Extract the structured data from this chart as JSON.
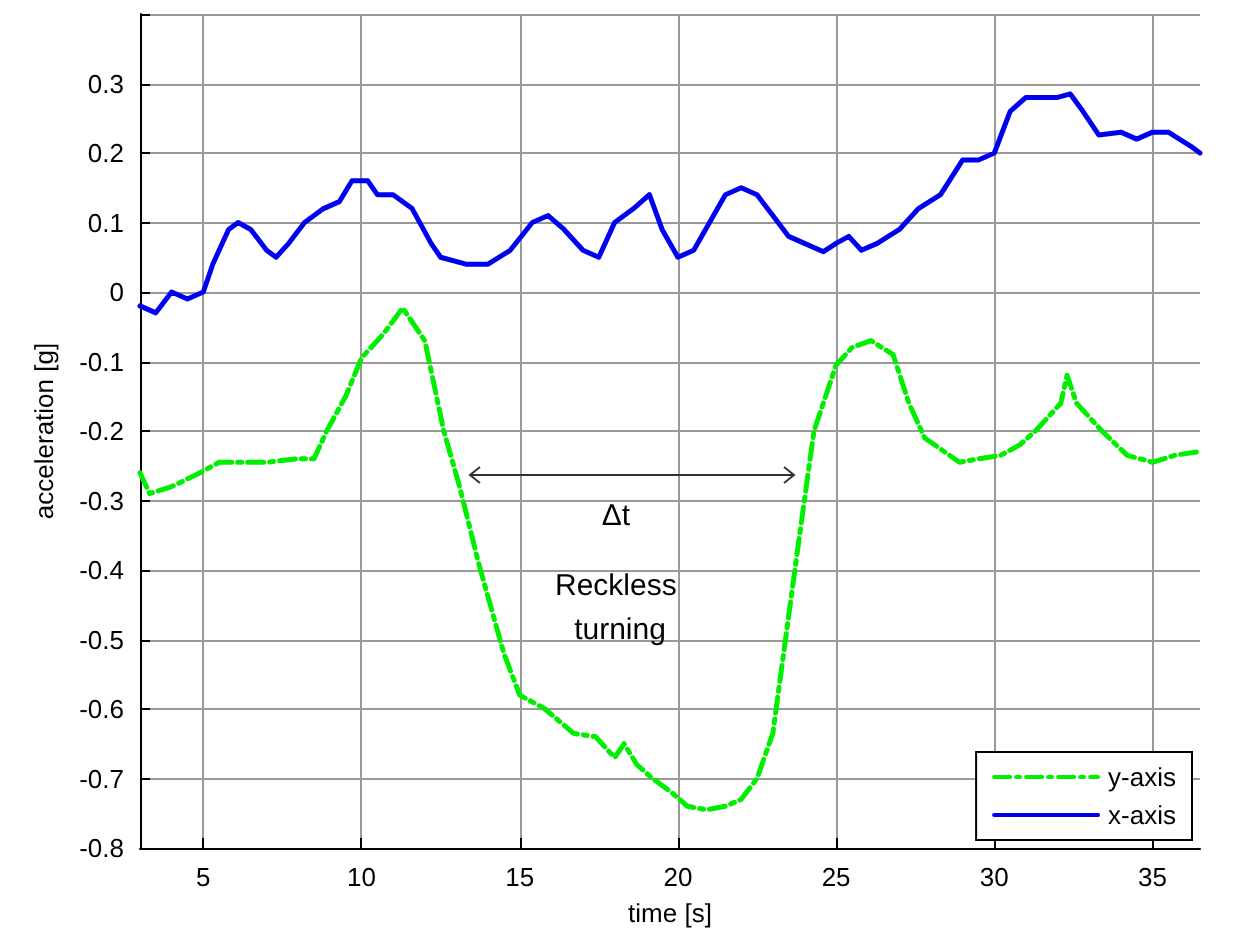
{
  "chart_data": {
    "type": "line",
    "xlabel": "time [s]",
    "ylabel": "acceleration [g]",
    "xlim": [
      3,
      36.5
    ],
    "xticks": [
      5,
      10,
      15,
      20,
      25,
      30,
      35
    ],
    "ylim": [
      -0.8,
      0.4
    ],
    "yticks": [
      -0.8,
      -0.7,
      -0.6,
      -0.5,
      -0.4,
      -0.3,
      -0.2,
      -0.1,
      0,
      0.1,
      0.2,
      0.3,
      {
        "value": 0.4,
        "label": null
      }
    ],
    "grid": true,
    "legend": "bottom right",
    "marker": "none",
    "annotations": [
      "Δt",
      "Reckless turning"
    ],
    "series": [
      {
        "name": "y-axis",
        "color": "#00ee00",
        "line_style": "dashed",
        "x": [
          3.0,
          3.3,
          4.0,
          4.9,
          5.5,
          7.0,
          8.0,
          8.5,
          8.9,
          9.5,
          10.0,
          10.7,
          11.3,
          12.0,
          12.6,
          13.1,
          13.7,
          14.5,
          15.0,
          15.8,
          16.7,
          17.4,
          18.0,
          18.3,
          18.7,
          19.2,
          19.8,
          20.3,
          20.9,
          21.5,
          22.0,
          22.5,
          23.0,
          23.4,
          23.8,
          24.3,
          25.0,
          25.5,
          26.1,
          26.8,
          27.3,
          27.8,
          28.9,
          29.5,
          30.2,
          30.8,
          31.3,
          32.1,
          32.3,
          32.6,
          33.0,
          33.4,
          34.2,
          35.0,
          35.7,
          36.4
        ],
        "values": [
          -0.26,
          -0.29,
          -0.28,
          -0.26,
          -0.245,
          -0.245,
          -0.24,
          -0.24,
          -0.2,
          -0.15,
          -0.095,
          -0.06,
          -0.023,
          -0.07,
          -0.2,
          -0.28,
          -0.39,
          -0.52,
          -0.58,
          -0.6,
          -0.635,
          -0.64,
          -0.67,
          -0.65,
          -0.68,
          -0.7,
          -0.72,
          -0.74,
          -0.745,
          -0.74,
          -0.73,
          -0.7,
          -0.635,
          -0.5,
          -0.365,
          -0.2,
          -0.105,
          -0.08,
          -0.07,
          -0.09,
          -0.16,
          -0.21,
          -0.245,
          -0.24,
          -0.235,
          -0.22,
          -0.2,
          -0.16,
          -0.12,
          -0.16,
          -0.18,
          -0.2,
          -0.235,
          -0.245,
          -0.235,
          -0.23
        ]
      },
      {
        "name": "x-axis",
        "color": "#0000ee",
        "line_style": "solid",
        "x": [
          3.0,
          3.5,
          4.0,
          4.5,
          5.0,
          5.3,
          5.8,
          6.1,
          6.5,
          7.0,
          7.3,
          7.7,
          8.2,
          8.8,
          9.3,
          9.7,
          10.2,
          10.5,
          11.0,
          11.6,
          12.2,
          12.5,
          13.3,
          14.0,
          14.7,
          15.4,
          15.9,
          16.4,
          17.0,
          17.5,
          18.0,
          18.6,
          19.1,
          19.5,
          20.0,
          20.5,
          21.0,
          21.5,
          22.0,
          22.5,
          23.0,
          23.5,
          24.0,
          24.6,
          25.0,
          25.4,
          25.8,
          26.3,
          27.0,
          27.6,
          28.3,
          29.0,
          29.5,
          30.0,
          30.5,
          31.0,
          31.5,
          32.0,
          32.4,
          32.8,
          33.3,
          34.0,
          34.5,
          35.0,
          35.5,
          36.2,
          36.5
        ],
        "values": [
          -0.02,
          -0.03,
          0.0,
          -0.01,
          0.0,
          0.04,
          0.09,
          0.1,
          0.09,
          0.06,
          0.05,
          0.07,
          0.1,
          0.12,
          0.13,
          0.16,
          0.16,
          0.14,
          0.14,
          0.12,
          0.07,
          0.05,
          0.04,
          0.04,
          0.06,
          0.1,
          0.11,
          0.09,
          0.06,
          0.05,
          0.1,
          0.12,
          0.14,
          0.09,
          0.05,
          0.06,
          0.1,
          0.14,
          0.15,
          0.14,
          0.11,
          0.08,
          0.07,
          0.058,
          0.07,
          0.08,
          0.06,
          0.07,
          0.09,
          0.12,
          0.14,
          0.19,
          0.19,
          0.2,
          0.26,
          0.28,
          0.28,
          0.28,
          0.285,
          0.26,
          0.226,
          0.23,
          0.22,
          0.23,
          0.23,
          0.21,
          0.2
        ]
      }
    ]
  }
}
